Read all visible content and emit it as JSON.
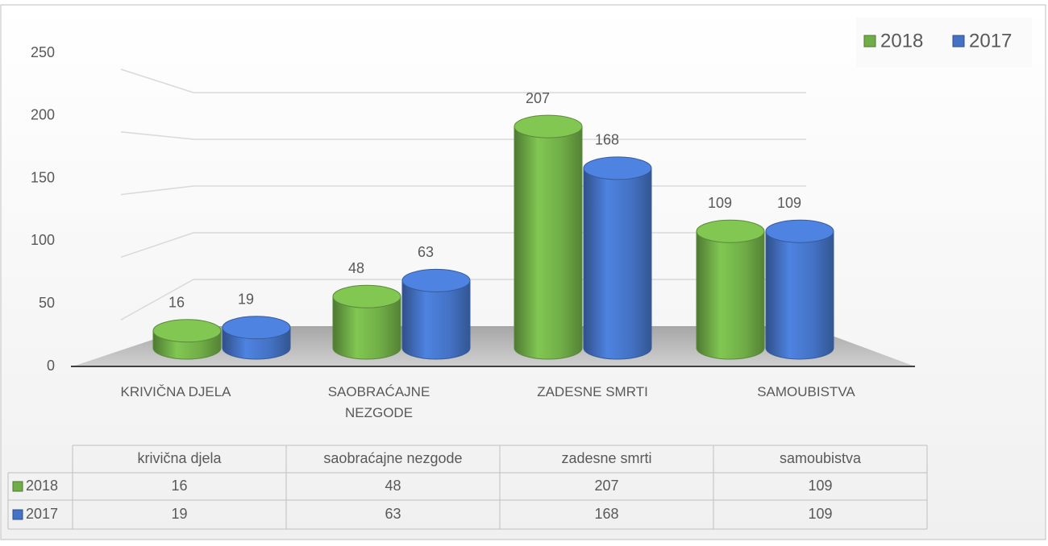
{
  "chart_data": {
    "type": "bar",
    "categories": [
      "KRIVIČNA DJELA",
      "SAOBRAĆAJNE NEZGODE",
      "ZADESNE SMRTI",
      "SAMOUBISTVA"
    ],
    "series": [
      {
        "name": "2018",
        "color": "#70ad47",
        "values": [
          16,
          48,
          207,
          109
        ]
      },
      {
        "name": "2017",
        "color": "#4472c4",
        "values": [
          19,
          63,
          168,
          109
        ]
      }
    ],
    "ylim": [
      0,
      250
    ],
    "yticks": [
      0,
      50,
      100,
      150,
      200,
      250
    ],
    "grid": true,
    "legend": "top-right",
    "data_table": {
      "columns": [
        "krivična djela",
        "saobraćajne nezgode",
        "zadesne smrti",
        "samoubistva"
      ]
    }
  }
}
